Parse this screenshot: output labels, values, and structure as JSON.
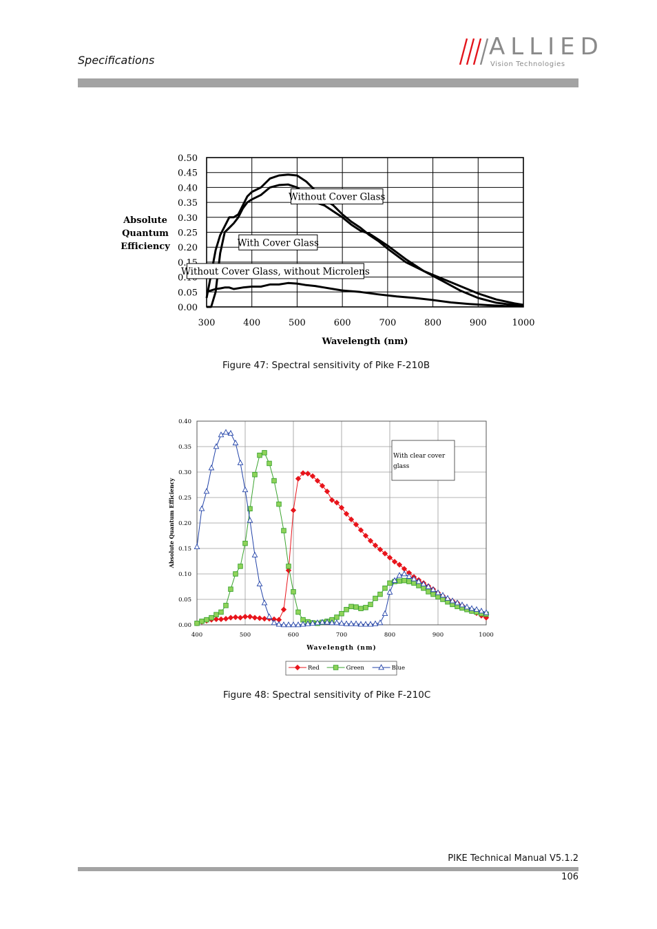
{
  "header": {
    "title": "Specifications",
    "logo_word": "ALLIED",
    "logo_sub": "Vision Technologies"
  },
  "footer": {
    "manual": "PIKE Technical Manual V5.1.2",
    "page": "106"
  },
  "colors": {
    "rule": "#a3a3a3",
    "logo": "#8a8a8a",
    "red": "#e8141b",
    "green": "#3aa32e",
    "green_fill": "#8fd35a",
    "blue": "#2142a8"
  },
  "captions": {
    "fig47": "Figure 47: Spectral sensitivity of Pike F-210B",
    "fig48": "Figure 48: Spectral sensitivity of Pike F-210C"
  },
  "chart_data": [
    {
      "type": "line",
      "title": "",
      "xlabel": "Wavelength (nm)",
      "ylabel": [
        "Absolute",
        "Quantum",
        "Efficiency"
      ],
      "xlim": [
        300,
        1000
      ],
      "ylim": [
        0,
        0.5
      ],
      "x_ticks": [
        "300",
        "400",
        "500",
        "600",
        "700",
        "800",
        "900",
        "1000"
      ],
      "y_ticks": [
        "0.00",
        "0.05",
        "0.10",
        "0.15",
        "0.20",
        "0.25",
        "0.30",
        "0.35",
        "0.40",
        "0.45",
        "0.50"
      ],
      "grid": true,
      "legend": "none",
      "annotations": [
        {
          "text": "Without Cover Glass",
          "x": 588,
          "y": 0.37
        },
        {
          "text": "With Cover Glass",
          "x": 458,
          "y": 0.216
        },
        {
          "text": "Without Cover Glass, without Microlens",
          "x": 452,
          "y": 0.12
        }
      ],
      "series": [
        {
          "name": "Without Cover Glass",
          "x": [
            300,
            310,
            320,
            330,
            340,
            350,
            360,
            370,
            380,
            390,
            400,
            420,
            440,
            460,
            480,
            500,
            520,
            540,
            560,
            580,
            600,
            620,
            640,
            660,
            680,
            700,
            740,
            780,
            820,
            860,
            900,
            940,
            980,
            1000
          ],
          "y": [
            0.03,
            0.11,
            0.19,
            0.24,
            0.27,
            0.3,
            0.3,
            0.31,
            0.34,
            0.37,
            0.385,
            0.4,
            0.43,
            0.44,
            0.443,
            0.44,
            0.42,
            0.39,
            0.36,
            0.34,
            0.31,
            0.285,
            0.265,
            0.24,
            0.22,
            0.195,
            0.15,
            0.12,
            0.095,
            0.07,
            0.045,
            0.025,
            0.012,
            0.007
          ]
        },
        {
          "name": "With Cover Glass",
          "x": [
            300,
            310,
            320,
            330,
            340,
            350,
            360,
            370,
            380,
            390,
            400,
            420,
            440,
            460,
            480,
            500,
            520,
            540,
            560,
            580,
            600,
            620,
            640,
            660,
            680,
            700,
            740,
            780,
            820,
            860,
            900,
            940,
            980,
            1000
          ],
          "y": [
            0.0,
            0.0,
            0.05,
            0.18,
            0.25,
            0.265,
            0.28,
            0.3,
            0.33,
            0.35,
            0.36,
            0.375,
            0.4,
            0.408,
            0.41,
            0.4,
            0.375,
            0.35,
            0.34,
            0.32,
            0.3,
            0.275,
            0.255,
            0.245,
            0.225,
            0.205,
            0.16,
            0.12,
            0.088,
            0.055,
            0.03,
            0.014,
            0.006,
            0.004
          ]
        },
        {
          "name": "Without Cover Glass, without Microlens",
          "x": [
            300,
            310,
            320,
            330,
            340,
            350,
            360,
            380,
            400,
            420,
            440,
            460,
            480,
            500,
            520,
            540,
            560,
            580,
            600,
            640,
            680,
            720,
            760,
            800,
            840,
            880,
            920,
            960,
            1000
          ],
          "y": [
            0.05,
            0.055,
            0.06,
            0.062,
            0.065,
            0.065,
            0.06,
            0.065,
            0.068,
            0.068,
            0.075,
            0.075,
            0.08,
            0.078,
            0.073,
            0.07,
            0.065,
            0.06,
            0.055,
            0.05,
            0.042,
            0.035,
            0.03,
            0.023,
            0.015,
            0.01,
            0.006,
            0.003,
            0.002
          ]
        }
      ]
    },
    {
      "type": "line",
      "title": "",
      "xlabel": "Wavelength (nm)",
      "ylabel": "Absolute Quantum Efficiency",
      "xlim": [
        400,
        1000
      ],
      "ylim": [
        0,
        0.4
      ],
      "x_ticks": [
        "400",
        "500",
        "600",
        "700",
        "800",
        "900",
        "1000"
      ],
      "y_ticks": [
        "0.00",
        "0.05",
        "0.10",
        "0.15",
        "0.20",
        "0.25",
        "0.30",
        "0.35",
        "0.40"
      ],
      "grid": true,
      "legend": "bottom",
      "annotation": "With clear cover glass",
      "x": [
        400,
        410,
        420,
        430,
        440,
        450,
        460,
        470,
        480,
        490,
        500,
        510,
        520,
        530,
        540,
        550,
        560,
        570,
        580,
        590,
        600,
        610,
        620,
        630,
        640,
        650,
        660,
        670,
        680,
        690,
        700,
        710,
        720,
        730,
        740,
        750,
        760,
        770,
        780,
        790,
        800,
        810,
        820,
        830,
        840,
        850,
        860,
        870,
        880,
        890,
        900,
        910,
        920,
        930,
        940,
        950,
        960,
        970,
        980,
        990,
        1000
      ],
      "series": [
        {
          "name": "Red",
          "values": [
            0.003,
            0.006,
            0.008,
            0.01,
            0.011,
            0.011,
            0.012,
            0.014,
            0.015,
            0.014,
            0.016,
            0.016,
            0.014,
            0.013,
            0.012,
            0.012,
            0.011,
            0.01,
            0.03,
            0.107,
            0.225,
            0.287,
            0.298,
            0.297,
            0.292,
            0.283,
            0.273,
            0.262,
            0.245,
            0.24,
            0.23,
            0.218,
            0.207,
            0.197,
            0.186,
            0.175,
            0.165,
            0.156,
            0.148,
            0.14,
            0.132,
            0.124,
            0.118,
            0.11,
            0.102,
            0.094,
            0.088,
            0.082,
            0.076,
            0.07,
            0.063,
            0.057,
            0.051,
            0.047,
            0.043,
            0.038,
            0.032,
            0.027,
            0.023,
            0.018,
            0.014
          ]
        },
        {
          "name": "Green",
          "values": [
            0.003,
            0.007,
            0.01,
            0.014,
            0.02,
            0.025,
            0.038,
            0.07,
            0.1,
            0.115,
            0.16,
            0.228,
            0.295,
            0.333,
            0.338,
            0.317,
            0.283,
            0.237,
            0.185,
            0.115,
            0.065,
            0.025,
            0.01,
            0.006,
            0.004,
            0.003,
            0.005,
            0.007,
            0.01,
            0.015,
            0.022,
            0.03,
            0.036,
            0.035,
            0.032,
            0.034,
            0.04,
            0.052,
            0.06,
            0.072,
            0.082,
            0.085,
            0.086,
            0.087,
            0.085,
            0.082,
            0.077,
            0.072,
            0.065,
            0.06,
            0.055,
            0.05,
            0.045,
            0.04,
            0.036,
            0.033,
            0.03,
            0.027,
            0.025,
            0.022,
            0.021
          ]
        },
        {
          "name": "Blue",
          "values": [
            0.153,
            0.228,
            0.262,
            0.308,
            0.35,
            0.373,
            0.378,
            0.376,
            0.357,
            0.318,
            0.265,
            0.205,
            0.137,
            0.08,
            0.043,
            0.016,
            0.004,
            0.001,
            0.0,
            0.0,
            0.0,
            0.0,
            0.001,
            0.002,
            0.003,
            0.004,
            0.005,
            0.005,
            0.004,
            0.004,
            0.003,
            0.002,
            0.002,
            0.002,
            0.001,
            0.001,
            0.001,
            0.002,
            0.004,
            0.022,
            0.064,
            0.087,
            0.097,
            0.1,
            0.095,
            0.09,
            0.085,
            0.08,
            0.075,
            0.069,
            0.063,
            0.058,
            0.052,
            0.047,
            0.043,
            0.039,
            0.035,
            0.032,
            0.03,
            0.027,
            0.024
          ]
        }
      ]
    }
  ]
}
